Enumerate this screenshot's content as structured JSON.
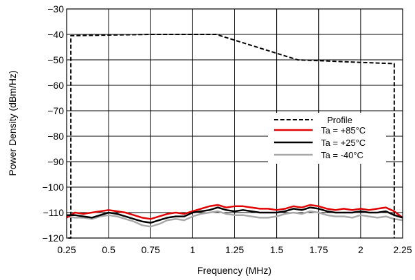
{
  "chart_data": {
    "type": "line",
    "xlabel": "Frequency (MHz)",
    "ylabel": "Power Density (dBm/Hz)",
    "xlim": [
      0.25,
      2.25
    ],
    "ylim": [
      -120,
      -30
    ],
    "x_ticks": [
      0.25,
      0.5,
      0.75,
      1,
      1.25,
      1.5,
      1.75,
      2,
      2.25
    ],
    "x_tick_labels": [
      "0.25",
      "0.5",
      "0.75",
      "1",
      "1.25",
      "1.5",
      "1.75",
      "2",
      "2.25"
    ],
    "y_ticks": [
      -30,
      -40,
      -50,
      -60,
      -70,
      -80,
      -90,
      -100,
      -110,
      -120
    ],
    "y_tick_labels": [
      "−30",
      "−40",
      "−50",
      "−60",
      "−70",
      "−80",
      "−90",
      "−100",
      "−110",
      "−120"
    ],
    "grid": true,
    "legend_position": "right-middle",
    "series": [
      {
        "name": "Profile",
        "color": "#000000",
        "dash": "dashed",
        "x": [
          0.26,
          0.275,
          0.275,
          0.75,
          1.0,
          1.14,
          1.625,
          2.0,
          2.2,
          2.2
        ],
        "y": [
          -120,
          -120,
          -40.5,
          -40,
          -40,
          -40,
          -50,
          -51,
          -51.5,
          -120
        ]
      },
      {
        "name": "Ta = +85°C",
        "color": "#e00000",
        "dash": "solid",
        "x": [
          0.25,
          0.3,
          0.35,
          0.4,
          0.45,
          0.5,
          0.55,
          0.6,
          0.65,
          0.7,
          0.75,
          0.8,
          0.85,
          0.9,
          0.95,
          1.0,
          1.05,
          1.1,
          1.15,
          1.2,
          1.25,
          1.3,
          1.35,
          1.4,
          1.45,
          1.5,
          1.55,
          1.6,
          1.65,
          1.7,
          1.75,
          1.8,
          1.85,
          1.9,
          1.95,
          2.0,
          2.05,
          2.1,
          2.15,
          2.2,
          2.25
        ],
        "y": [
          -112,
          -110,
          -110.5,
          -110,
          -109.5,
          -109,
          -109.5,
          -110,
          -111,
          -112,
          -112.5,
          -111.5,
          -110.5,
          -110,
          -110.5,
          -109.5,
          -108.5,
          -107.5,
          -107,
          -108,
          -107.5,
          -107.5,
          -108,
          -108.5,
          -108.5,
          -109,
          -108.5,
          -107.5,
          -108,
          -107,
          -107.5,
          -108.5,
          -109,
          -108.5,
          -109,
          -108.5,
          -109,
          -108.5,
          -108,
          -109.5,
          -112
        ]
      },
      {
        "name": "Ta = +25°C",
        "color": "#000000",
        "dash": "solid",
        "x": [
          0.25,
          0.3,
          0.35,
          0.4,
          0.45,
          0.5,
          0.55,
          0.6,
          0.65,
          0.7,
          0.75,
          0.8,
          0.85,
          0.9,
          0.95,
          1.0,
          1.05,
          1.1,
          1.15,
          1.2,
          1.25,
          1.3,
          1.35,
          1.4,
          1.45,
          1.5,
          1.55,
          1.6,
          1.65,
          1.7,
          1.75,
          1.8,
          1.85,
          1.9,
          1.95,
          2.0,
          2.05,
          2.1,
          2.15,
          2.2,
          2.25
        ],
        "y": [
          -111,
          -111,
          -111.5,
          -112,
          -111,
          -110,
          -110.5,
          -111.5,
          -112.5,
          -113.5,
          -114,
          -113,
          -112,
          -111.5,
          -111.5,
          -110,
          -109.5,
          -109,
          -108,
          -109,
          -109.5,
          -109,
          -109.5,
          -110,
          -110,
          -110,
          -109.5,
          -108.5,
          -109,
          -108,
          -108.5,
          -109.5,
          -110,
          -110,
          -110,
          -109.5,
          -110,
          -110,
          -109.5,
          -111,
          -112
        ]
      },
      {
        "name": "Ta = -40°C",
        "color": "#a8a8a8",
        "dash": "solid",
        "x": [
          0.25,
          0.3,
          0.35,
          0.4,
          0.45,
          0.5,
          0.55,
          0.6,
          0.65,
          0.7,
          0.75,
          0.8,
          0.85,
          0.9,
          0.95,
          1.0,
          1.05,
          1.1,
          1.15,
          1.2,
          1.25,
          1.3,
          1.35,
          1.4,
          1.45,
          1.5,
          1.55,
          1.6,
          1.65,
          1.7,
          1.75,
          1.8,
          1.85,
          1.9,
          1.95,
          2.0,
          2.05,
          2.1,
          2.15,
          2.2,
          2.25
        ],
        "y": [
          -111.5,
          -112,
          -112,
          -112.5,
          -111.5,
          -111,
          -111.5,
          -112.5,
          -113.5,
          -115,
          -115.5,
          -114.5,
          -113,
          -112.5,
          -113,
          -111.5,
          -110.5,
          -110,
          -109.5,
          -110.5,
          -111,
          -111,
          -111.5,
          -112,
          -112,
          -111.5,
          -110.5,
          -110,
          -110.5,
          -109.5,
          -110,
          -111,
          -111.5,
          -111.5,
          -112,
          -111,
          -111.5,
          -112,
          -111.5,
          -112.5,
          -113
        ]
      }
    ]
  }
}
